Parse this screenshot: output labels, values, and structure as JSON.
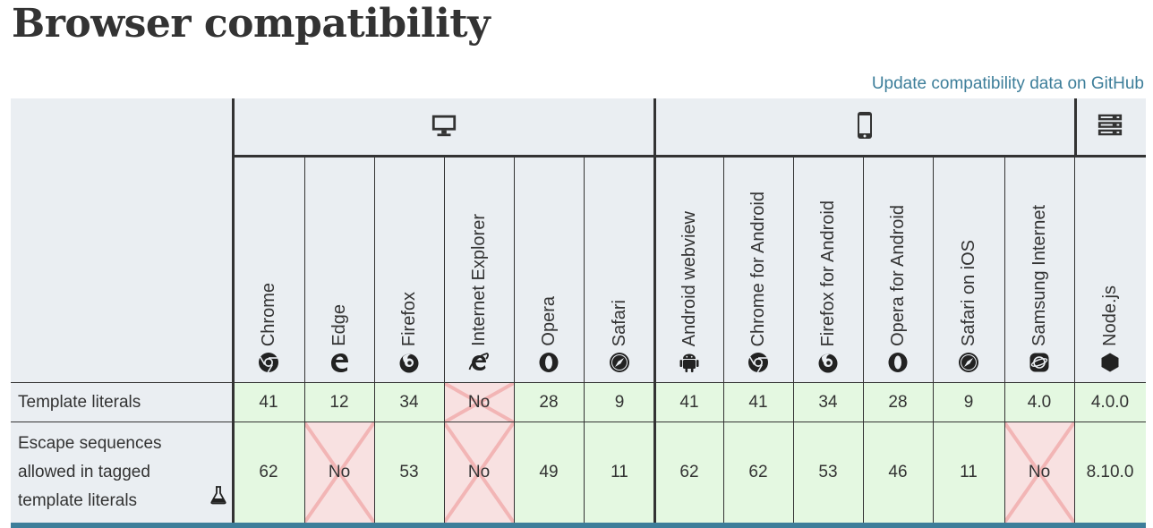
{
  "page": {
    "title": "Browser compatibility",
    "github_link": "Update compatibility data on GitHub"
  },
  "groups": [
    {
      "name": "desktop",
      "icon": "desktop-icon"
    },
    {
      "name": "mobile",
      "icon": "mobile-icon"
    },
    {
      "name": "server",
      "icon": "server-icon"
    }
  ],
  "browsers": [
    {
      "name": "Chrome",
      "icon": "chrome-icon"
    },
    {
      "name": "Edge",
      "icon": "edge-icon"
    },
    {
      "name": "Firefox",
      "icon": "firefox-icon"
    },
    {
      "name": "Internet Explorer",
      "icon": "internet-explorer-icon"
    },
    {
      "name": "Opera",
      "icon": "opera-icon"
    },
    {
      "name": "Safari",
      "icon": "safari-icon"
    },
    {
      "name": "Android webview",
      "icon": "android-icon"
    },
    {
      "name": "Chrome for Android",
      "icon": "chrome-icon"
    },
    {
      "name": "Firefox for Android",
      "icon": "firefox-icon"
    },
    {
      "name": "Opera for Android",
      "icon": "opera-icon"
    },
    {
      "name": "Safari on iOS",
      "icon": "safari-icon"
    },
    {
      "name": "Samsung Internet",
      "icon": "samsung-internet-icon"
    },
    {
      "name": "Node.js",
      "icon": "nodejs-icon"
    }
  ],
  "rows": [
    {
      "feature": "Template literals",
      "experimental": false,
      "values": [
        "41",
        "12",
        "34",
        "No",
        "28",
        "9",
        "41",
        "41",
        "34",
        "28",
        "9",
        "4.0",
        "4.0.0"
      ]
    },
    {
      "feature": "Escape sequences allowed in tagged template literals",
      "experimental": true,
      "experimental_icon": "flask-icon",
      "values": [
        "62",
        "No",
        "53",
        "No",
        "49",
        "11",
        "62",
        "62",
        "53",
        "46",
        "11",
        "No",
        "8.10.0"
      ]
    }
  ],
  "colors": {
    "supported_bg": "#e4f8e1",
    "unsupported_bg": "#f8e1e1",
    "header_bg": "#eaeef2",
    "link": "#3d7e9a"
  }
}
